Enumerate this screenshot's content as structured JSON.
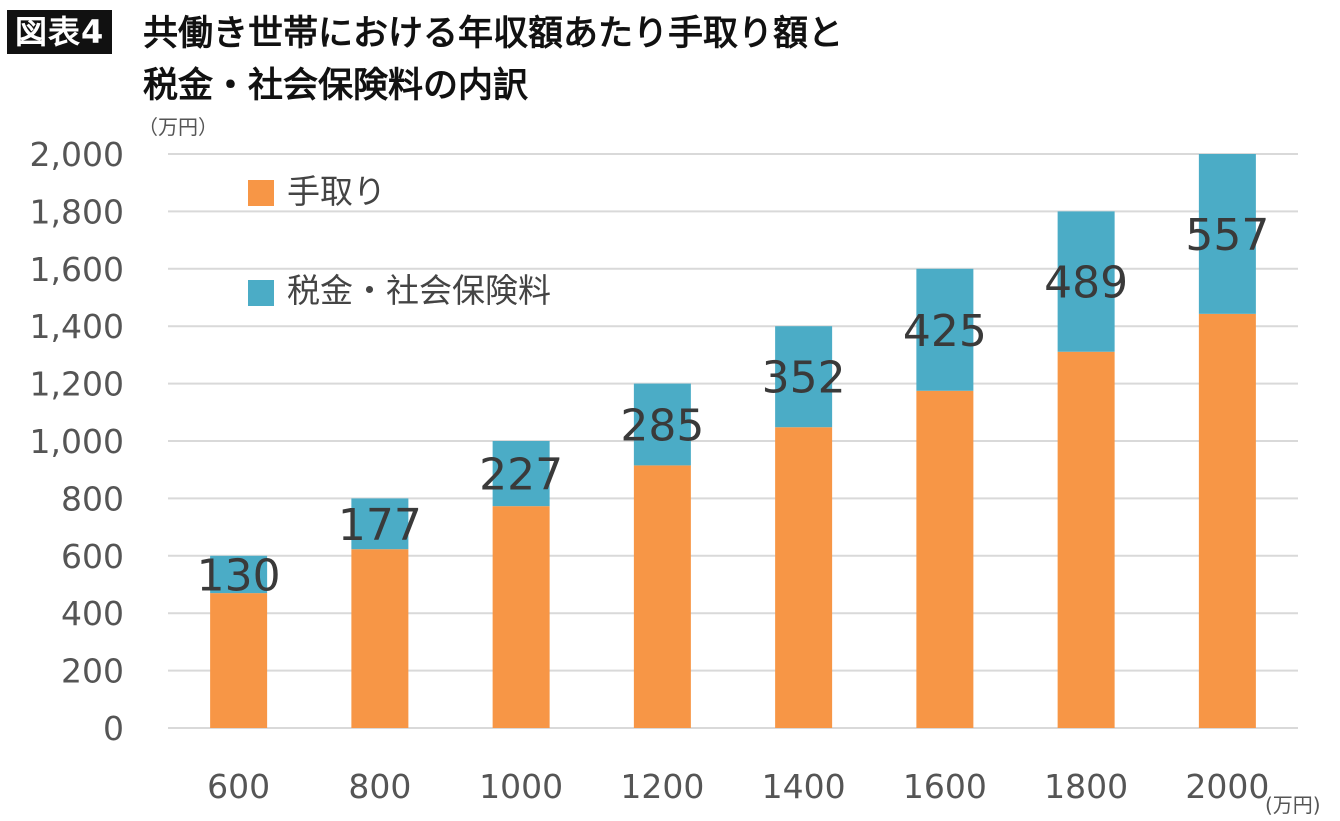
{
  "figure_tag": "図表4",
  "title_lines": [
    "共働き世帯における年収額あたり手取り額と",
    "税金・社会保険料の内訳"
  ],
  "colors": {
    "take_home": "#F79646",
    "tax": "#4BACC6",
    "grid": "#d9d9d9"
  },
  "chart_data": {
    "type": "bar",
    "stacked": true,
    "title": "共働き世帯における年収額あたり手取り額と税金・社会保険料の内訳",
    "y_unit": "（万円）",
    "x_unit": "(万円)",
    "categories": [
      "600",
      "800",
      "1000",
      "1200",
      "1400",
      "1600",
      "1800",
      "2000"
    ],
    "ylim": [
      0,
      2000
    ],
    "y_ticks": [
      "0",
      "200",
      "400",
      "600",
      "800",
      "1,000",
      "1,200",
      "1,400",
      "1,600",
      "1,800",
      "2,000"
    ],
    "y_tick_values": [
      0,
      200,
      400,
      600,
      800,
      1000,
      1200,
      1400,
      1600,
      1800,
      2000
    ],
    "grid": true,
    "legend_position": "top-left",
    "series": [
      {
        "name": "手取り",
        "values": [
          470,
          623,
          773,
          915,
          1048,
          1175,
          1311,
          1443
        ]
      },
      {
        "name": "税金・社会保険料",
        "values": [
          130,
          177,
          227,
          285,
          352,
          425,
          489,
          557
        ],
        "data_labels": [
          "130",
          "177",
          "227",
          "285",
          "352",
          "425",
          "489",
          "557"
        ]
      }
    ]
  }
}
